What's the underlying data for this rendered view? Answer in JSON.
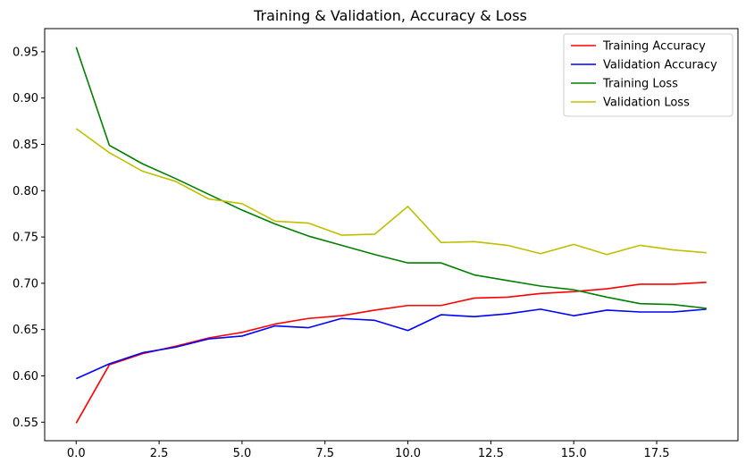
{
  "chart_data": {
    "type": "line",
    "title": "Training & Validation, Accuracy & Loss",
    "xlabel": "",
    "ylabel": "",
    "xlim": [
      -0.95,
      19.95
    ],
    "ylim": [
      0.53,
      0.975
    ],
    "x_ticks": [
      0.0,
      2.5,
      5.0,
      7.5,
      10.0,
      12.5,
      15.0,
      17.5
    ],
    "x_tick_labels": [
      "0.0",
      "2.5",
      "5.0",
      "7.5",
      "10.0",
      "12.5",
      "15.0",
      "17.5"
    ],
    "y_ticks": [
      0.55,
      0.6,
      0.65,
      0.7,
      0.75,
      0.8,
      0.85,
      0.9,
      0.95
    ],
    "y_tick_labels": [
      "0.55",
      "0.60",
      "0.65",
      "0.70",
      "0.75",
      "0.80",
      "0.85",
      "0.90",
      "0.95"
    ],
    "grid": false,
    "legend_position": "upper right",
    "x": [
      0,
      1,
      2,
      3,
      4,
      5,
      6,
      7,
      8,
      9,
      10,
      11,
      12,
      13,
      14,
      15,
      16,
      17,
      18,
      19
    ],
    "series": [
      {
        "name": "Training Accuracy",
        "color": "#ff0000",
        "values": [
          0.549,
          0.612,
          0.624,
          0.632,
          0.641,
          0.647,
          0.656,
          0.662,
          0.665,
          0.671,
          0.676,
          0.676,
          0.684,
          0.685,
          0.689,
          0.691,
          0.694,
          0.699,
          0.699,
          0.701
        ]
      },
      {
        "name": "Validation Accuracy",
        "color": "#0000ff",
        "values": [
          0.597,
          0.613,
          0.625,
          0.631,
          0.64,
          0.643,
          0.654,
          0.652,
          0.662,
          0.66,
          0.649,
          0.666,
          0.664,
          0.667,
          0.672,
          0.665,
          0.671,
          0.669,
          0.669,
          0.672
        ]
      },
      {
        "name": "Training Loss",
        "color": "#008000",
        "values": [
          0.955,
          0.849,
          0.829,
          0.813,
          0.796,
          0.779,
          0.764,
          0.751,
          0.741,
          0.731,
          0.722,
          0.722,
          0.709,
          0.703,
          0.697,
          0.693,
          0.685,
          0.678,
          0.677,
          0.673
        ]
      },
      {
        "name": "Validation Loss",
        "color": "#bfbf00",
        "values": [
          0.867,
          0.841,
          0.821,
          0.81,
          0.791,
          0.786,
          0.767,
          0.765,
          0.752,
          0.753,
          0.783,
          0.744,
          0.745,
          0.741,
          0.732,
          0.742,
          0.731,
          0.741,
          0.736,
          0.733
        ]
      }
    ]
  }
}
